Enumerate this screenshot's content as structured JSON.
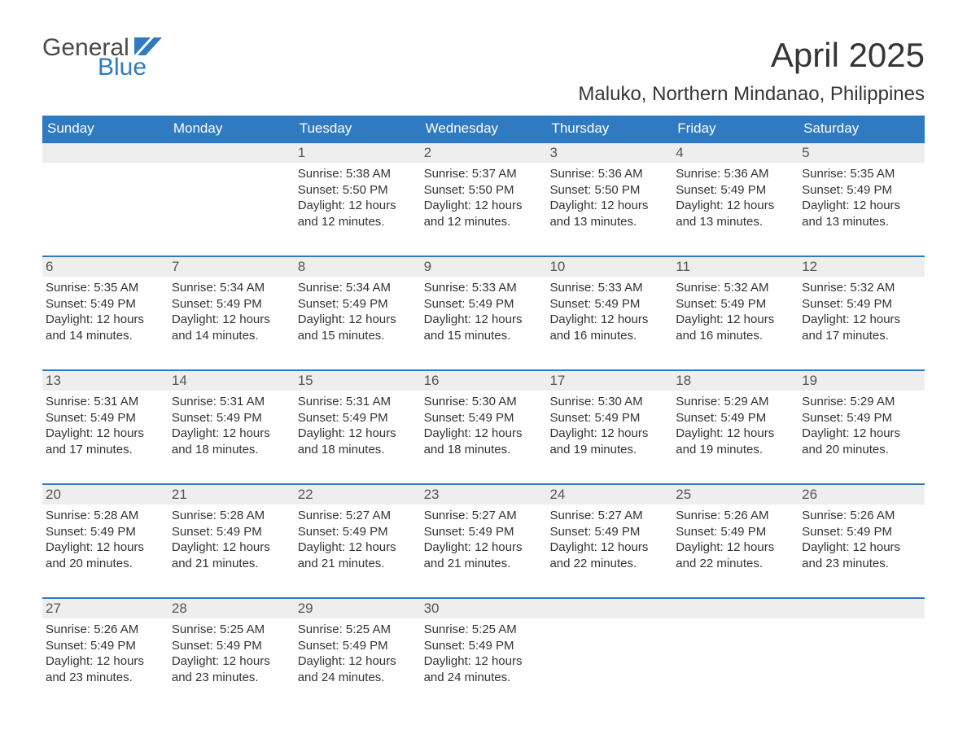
{
  "brand": {
    "line1": "General",
    "line2": "Blue",
    "accent_color": "#2f7ac0",
    "text_color": "#4a4a4a"
  },
  "title": "April 2025",
  "location": "Maluko, Northern Mindanao, Philippines",
  "colors": {
    "header_bg": "#2f7ac0",
    "header_text": "#ffffff",
    "week_border": "#2f7ac0",
    "daynum_bg": "#eeeeee",
    "body_text": "#333333",
    "page_bg": "#ffffff"
  },
  "typography": {
    "title_fontsize_pt": 32,
    "location_fontsize_pt": 18,
    "weekday_fontsize_pt": 13,
    "daynum_fontsize_pt": 13,
    "body_fontsize_pt": 11,
    "font_family": "Arial"
  },
  "weekdays": [
    "Sunday",
    "Monday",
    "Tuesday",
    "Wednesday",
    "Thursday",
    "Friday",
    "Saturday"
  ],
  "labels": {
    "sunrise": "Sunrise:",
    "sunset": "Sunset:",
    "daylight": "Daylight:"
  },
  "weeks": [
    [
      {
        "blank": true
      },
      {
        "blank": true
      },
      {
        "day": "1",
        "sunrise": "5:38 AM",
        "sunset": "5:50 PM",
        "daylight1": "12 hours",
        "daylight2": "and 12 minutes."
      },
      {
        "day": "2",
        "sunrise": "5:37 AM",
        "sunset": "5:50 PM",
        "daylight1": "12 hours",
        "daylight2": "and 12 minutes."
      },
      {
        "day": "3",
        "sunrise": "5:36 AM",
        "sunset": "5:50 PM",
        "daylight1": "12 hours",
        "daylight2": "and 13 minutes."
      },
      {
        "day": "4",
        "sunrise": "5:36 AM",
        "sunset": "5:49 PM",
        "daylight1": "12 hours",
        "daylight2": "and 13 minutes."
      },
      {
        "day": "5",
        "sunrise": "5:35 AM",
        "sunset": "5:49 PM",
        "daylight1": "12 hours",
        "daylight2": "and 13 minutes."
      }
    ],
    [
      {
        "day": "6",
        "sunrise": "5:35 AM",
        "sunset": "5:49 PM",
        "daylight1": "12 hours",
        "daylight2": "and 14 minutes."
      },
      {
        "day": "7",
        "sunrise": "5:34 AM",
        "sunset": "5:49 PM",
        "daylight1": "12 hours",
        "daylight2": "and 14 minutes."
      },
      {
        "day": "8",
        "sunrise": "5:34 AM",
        "sunset": "5:49 PM",
        "daylight1": "12 hours",
        "daylight2": "and 15 minutes."
      },
      {
        "day": "9",
        "sunrise": "5:33 AM",
        "sunset": "5:49 PM",
        "daylight1": "12 hours",
        "daylight2": "and 15 minutes."
      },
      {
        "day": "10",
        "sunrise": "5:33 AM",
        "sunset": "5:49 PM",
        "daylight1": "12 hours",
        "daylight2": "and 16 minutes."
      },
      {
        "day": "11",
        "sunrise": "5:32 AM",
        "sunset": "5:49 PM",
        "daylight1": "12 hours",
        "daylight2": "and 16 minutes."
      },
      {
        "day": "12",
        "sunrise": "5:32 AM",
        "sunset": "5:49 PM",
        "daylight1": "12 hours",
        "daylight2": "and 17 minutes."
      }
    ],
    [
      {
        "day": "13",
        "sunrise": "5:31 AM",
        "sunset": "5:49 PM",
        "daylight1": "12 hours",
        "daylight2": "and 17 minutes."
      },
      {
        "day": "14",
        "sunrise": "5:31 AM",
        "sunset": "5:49 PM",
        "daylight1": "12 hours",
        "daylight2": "and 18 minutes."
      },
      {
        "day": "15",
        "sunrise": "5:31 AM",
        "sunset": "5:49 PM",
        "daylight1": "12 hours",
        "daylight2": "and 18 minutes."
      },
      {
        "day": "16",
        "sunrise": "5:30 AM",
        "sunset": "5:49 PM",
        "daylight1": "12 hours",
        "daylight2": "and 18 minutes."
      },
      {
        "day": "17",
        "sunrise": "5:30 AM",
        "sunset": "5:49 PM",
        "daylight1": "12 hours",
        "daylight2": "and 19 minutes."
      },
      {
        "day": "18",
        "sunrise": "5:29 AM",
        "sunset": "5:49 PM",
        "daylight1": "12 hours",
        "daylight2": "and 19 minutes."
      },
      {
        "day": "19",
        "sunrise": "5:29 AM",
        "sunset": "5:49 PM",
        "daylight1": "12 hours",
        "daylight2": "and 20 minutes."
      }
    ],
    [
      {
        "day": "20",
        "sunrise": "5:28 AM",
        "sunset": "5:49 PM",
        "daylight1": "12 hours",
        "daylight2": "and 20 minutes."
      },
      {
        "day": "21",
        "sunrise": "5:28 AM",
        "sunset": "5:49 PM",
        "daylight1": "12 hours",
        "daylight2": "and 21 minutes."
      },
      {
        "day": "22",
        "sunrise": "5:27 AM",
        "sunset": "5:49 PM",
        "daylight1": "12 hours",
        "daylight2": "and 21 minutes."
      },
      {
        "day": "23",
        "sunrise": "5:27 AM",
        "sunset": "5:49 PM",
        "daylight1": "12 hours",
        "daylight2": "and 21 minutes."
      },
      {
        "day": "24",
        "sunrise": "5:27 AM",
        "sunset": "5:49 PM",
        "daylight1": "12 hours",
        "daylight2": "and 22 minutes."
      },
      {
        "day": "25",
        "sunrise": "5:26 AM",
        "sunset": "5:49 PM",
        "daylight1": "12 hours",
        "daylight2": "and 22 minutes."
      },
      {
        "day": "26",
        "sunrise": "5:26 AM",
        "sunset": "5:49 PM",
        "daylight1": "12 hours",
        "daylight2": "and 23 minutes."
      }
    ],
    [
      {
        "day": "27",
        "sunrise": "5:26 AM",
        "sunset": "5:49 PM",
        "daylight1": "12 hours",
        "daylight2": "and 23 minutes."
      },
      {
        "day": "28",
        "sunrise": "5:25 AM",
        "sunset": "5:49 PM",
        "daylight1": "12 hours",
        "daylight2": "and 23 minutes."
      },
      {
        "day": "29",
        "sunrise": "5:25 AM",
        "sunset": "5:49 PM",
        "daylight1": "12 hours",
        "daylight2": "and 24 minutes."
      },
      {
        "day": "30",
        "sunrise": "5:25 AM",
        "sunset": "5:49 PM",
        "daylight1": "12 hours",
        "daylight2": "and 24 minutes."
      },
      {
        "blank": true
      },
      {
        "blank": true
      },
      {
        "blank": true
      }
    ]
  ]
}
